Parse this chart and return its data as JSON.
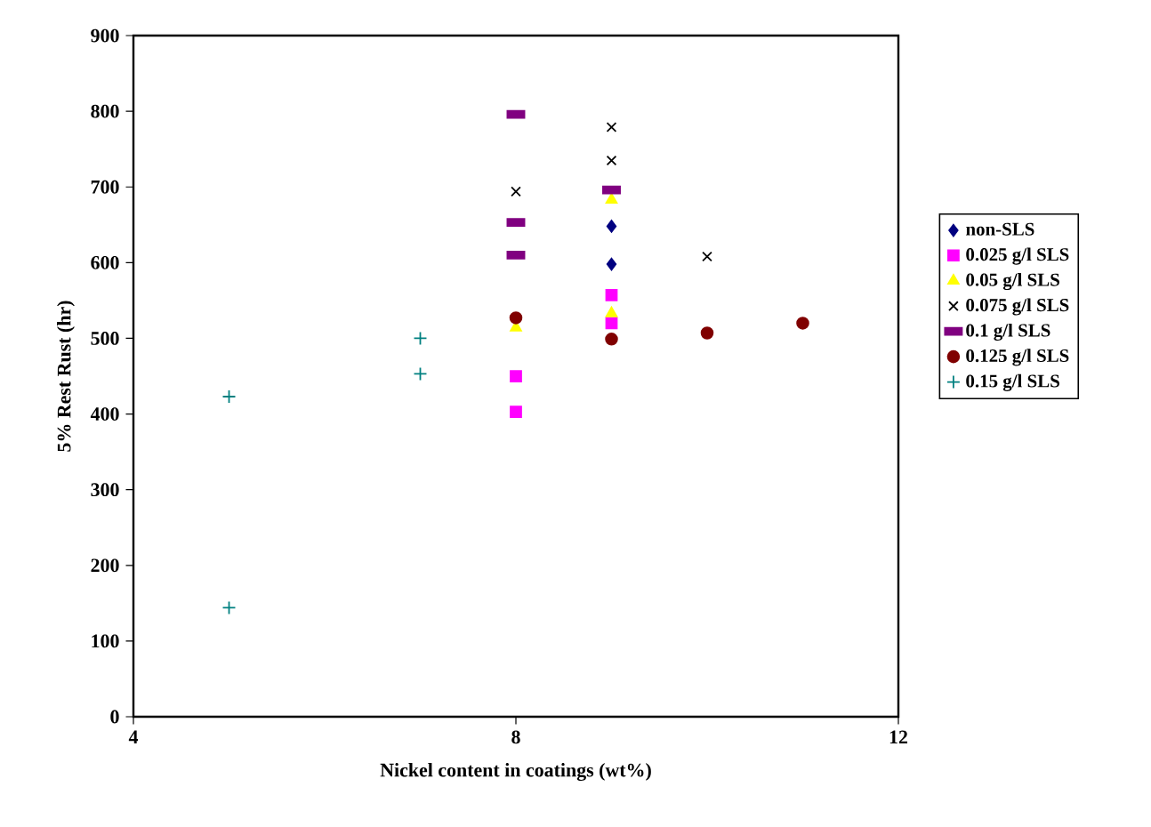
{
  "chart_data": {
    "type": "scatter",
    "xlabel": "Nickel content in coatings (wt%)",
    "ylabel": "5% Rest Rust (hr)",
    "xlim": [
      4,
      12
    ],
    "xticks": [
      4,
      8,
      12
    ],
    "ylim": [
      0,
      900
    ],
    "yticks": [
      0,
      100,
      200,
      300,
      400,
      500,
      600,
      700,
      800,
      900
    ],
    "grid": false,
    "legend": "right",
    "series": [
      {
        "name": "non-SLS",
        "color": "#000080",
        "marker": "diamond",
        "x": [
          9,
          9
        ],
        "values": [
          648,
          598
        ]
      },
      {
        "name": "0.025 g/l SLS",
        "color": "#ff00ff",
        "marker": "square",
        "x": [
          8,
          8,
          9,
          9
        ],
        "values": [
          450,
          403,
          557,
          520
        ]
      },
      {
        "name": "0.05 g/l SLS",
        "color": "#ffff00",
        "marker": "triangle",
        "x": [
          8,
          9,
          9
        ],
        "values": [
          514,
          683,
          533
        ]
      },
      {
        "name": "0.075 g/l SLS",
        "color": "#000000",
        "marker": "cross",
        "x": [
          8,
          9,
          9,
          10
        ],
        "values": [
          694,
          779,
          735,
          608
        ]
      },
      {
        "name": "0.1 g/l SLS",
        "color": "#800080",
        "x": [
          8,
          8,
          8,
          9
        ],
        "values": [
          796,
          653,
          610,
          696
        ]
      },
      {
        "name": "0.125 g/l SLS",
        "color": "#800000",
        "marker": "circle",
        "x": [
          8,
          9,
          10,
          11
        ],
        "values": [
          527,
          499,
          507,
          520
        ]
      },
      {
        "name": "0.15 g/l SLS",
        "color": "#008080",
        "marker": "plus",
        "x": [
          5,
          5,
          7,
          7
        ],
        "values": [
          423,
          144,
          500,
          453
        ]
      }
    ]
  }
}
